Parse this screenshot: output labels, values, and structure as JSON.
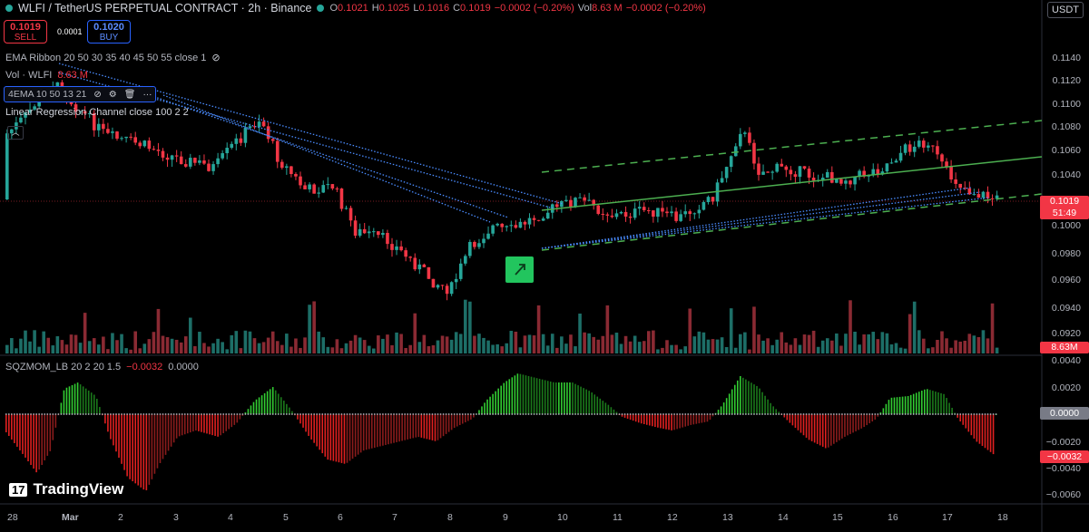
{
  "header": {
    "symbol_line": "WLFI / TetherUS PERPETUAL CONTRACT · 2h · Binance",
    "ohlc": [
      {
        "k": "O",
        "v": "0.1021"
      },
      {
        "k": "H",
        "v": "0.1025"
      },
      {
        "k": "L",
        "v": "0.1016"
      },
      {
        "k": "C",
        "v": "0.1019"
      },
      {
        "k": "",
        "v": "−0.0002 (−0.20%)"
      },
      {
        "k": "Vol",
        "v": "8.63 M"
      },
      {
        "k": "",
        "v": "−0.0002 (−0.20%)"
      }
    ],
    "currency": "USDT"
  },
  "trade": {
    "sell_price": "0.1019",
    "sell_label": "SELL",
    "buy_price": "0.1020",
    "buy_label": "BUY",
    "spread": "0.0001"
  },
  "indicators": {
    "ema_ribbon": "EMA Ribbon 20 50 30 35 40 45 50 55 close 1",
    "vol_label": "Vol · WLFI",
    "vol_value": "8.63 M",
    "ema4": "4EMA 10 50 13 21",
    "lrc": "Linear Regression Channel close 100 2 2",
    "sqz_label": "SQZMOM_LB 20 2 20 1.5",
    "sqz_val1": "−0.0032",
    "sqz_val2": "0.0000"
  },
  "price_axis": {
    "ticks": [
      "0.1140",
      "0.1120",
      "0.1100",
      "0.1080",
      "0.1060",
      "0.1040",
      "0.1000",
      "0.0980",
      "0.0960",
      "0.0940",
      "0.0920"
    ],
    "last_price": "0.1019",
    "countdown": "51:49",
    "vol_tag": "8.63M"
  },
  "sqz_axis": {
    "ticks": [
      "0.0040",
      "0.0020",
      "−0.0020",
      "−0.0040",
      "−0.0060"
    ],
    "zero_tag": "0.0000",
    "val_tag": "−0.0032"
  },
  "time_axis": [
    "28",
    "Mar",
    "2",
    "3",
    "4",
    "5",
    "6",
    "7",
    "8",
    "9",
    "10",
    "11",
    "12",
    "13",
    "14",
    "15",
    "16",
    "17",
    "18"
  ],
  "brand": "TradingView",
  "colors": {
    "up": "#26a69a",
    "down": "#f23645",
    "bg": "#000000",
    "accent": "#2962ff"
  }
}
